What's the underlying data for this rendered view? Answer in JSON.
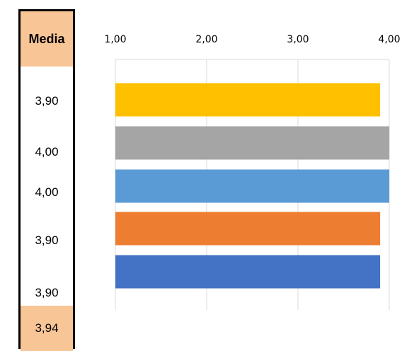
{
  "media_column": {
    "header": "Media",
    "values": [
      "3,90",
      "4,00",
      "4,00",
      "3,90",
      "3,90"
    ],
    "footer": "3,94",
    "highlight_color": "#F8C597"
  },
  "chart_data": {
    "type": "bar",
    "orientation": "horizontal",
    "values": [
      3.9,
      4.0,
      4.0,
      3.9,
      3.9
    ],
    "colors": [
      "#FFC000",
      "#A5A5A5",
      "#5B9BD5",
      "#ED7D31",
      "#4472C4"
    ],
    "xlim": [
      1,
      4
    ],
    "x_ticks": [
      "1,00",
      "2,00",
      "3,00",
      "4,00"
    ],
    "x_axis_position": "top",
    "grid": "vertical",
    "title": "",
    "xlabel": "",
    "ylabel": ""
  }
}
